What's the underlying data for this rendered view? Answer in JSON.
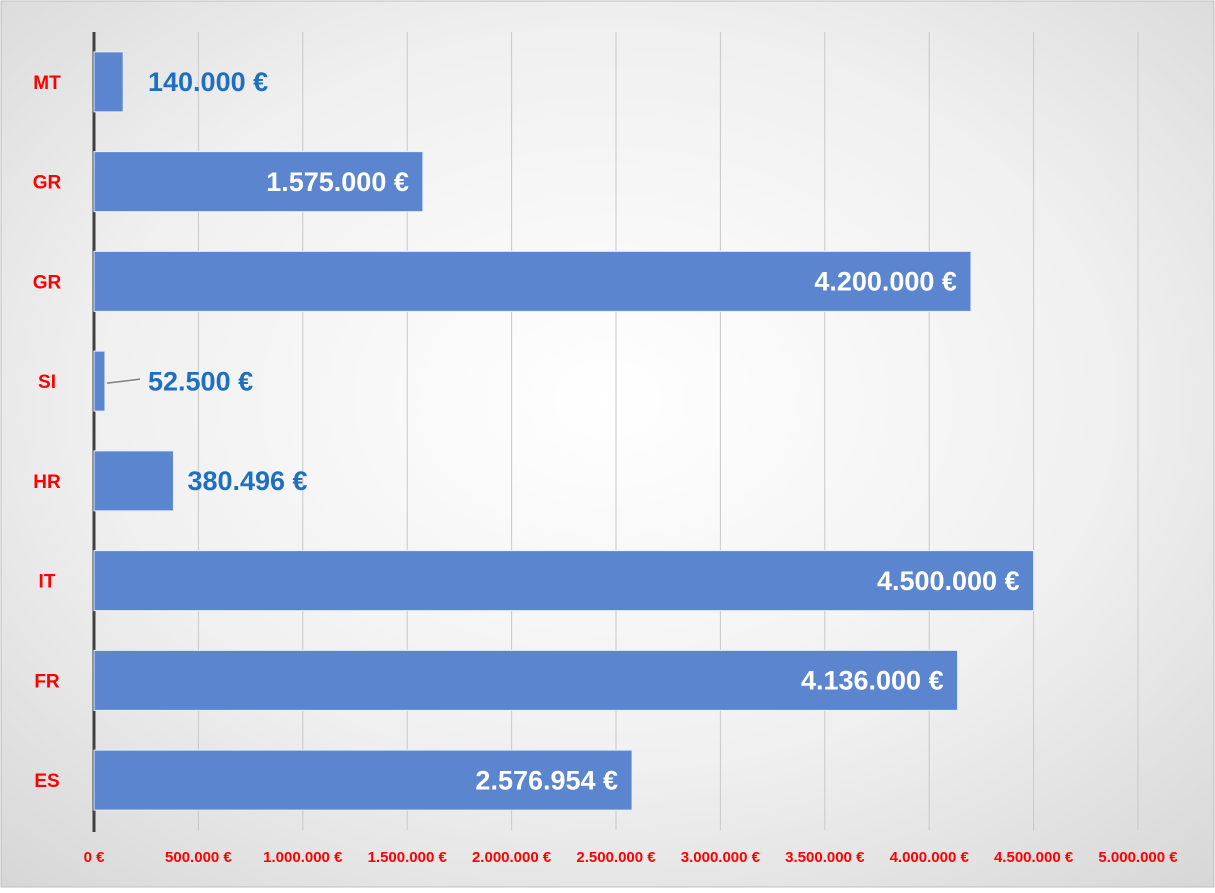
{
  "chart_data": {
    "type": "hbar",
    "categories": [
      "MT",
      "GR",
      "GR",
      "SI",
      "HR",
      "IT",
      "FR",
      "ES"
    ],
    "values": [
      140000,
      1575000,
      4200000,
      52500,
      380496,
      4500000,
      4136000,
      2576954
    ],
    "value_labels": [
      "140.000 €",
      "1.575.000 €",
      "4.200.000 €",
      "52.500 €",
      "380.496 €",
      "4.500.000 €",
      "4.136.000 €",
      "2.576.954 €"
    ],
    "color": "#5b86cf",
    "xlim": [
      0,
      5000000
    ],
    "xticks": [
      {
        "value": 0,
        "label": "0 €"
      },
      {
        "value": 500000,
        "label": "500.000 €"
      },
      {
        "value": 1000000,
        "label": "1.000.000 €"
      },
      {
        "value": 1500000,
        "label": "1.500.000 €"
      },
      {
        "value": 2000000,
        "label": "2.000.000 €"
      },
      {
        "value": 2500000,
        "label": "2.500.000 €"
      },
      {
        "value": 3000000,
        "label": "3.000.000 €"
      },
      {
        "value": 3500000,
        "label": "3.500.000 €"
      },
      {
        "value": 4000000,
        "label": "4.000.000 €"
      },
      {
        "value": 4500000,
        "label": "4.500.000 €"
      },
      {
        "value": 5000000,
        "label": "5.000.000 €"
      }
    ],
    "grid": true
  }
}
